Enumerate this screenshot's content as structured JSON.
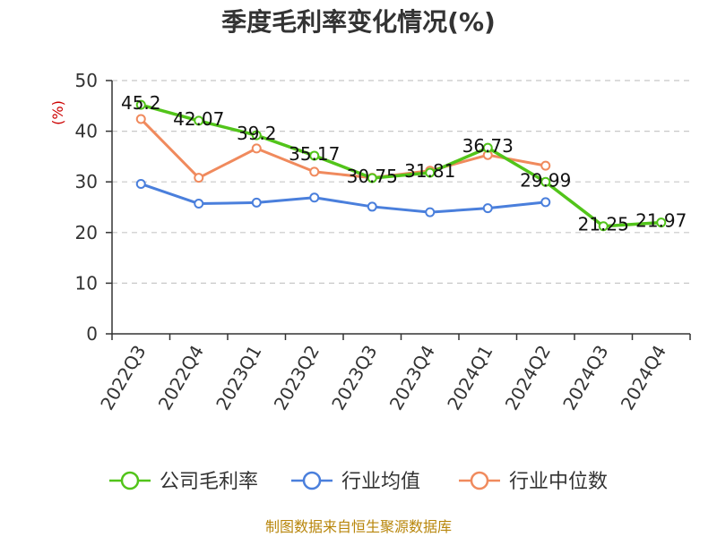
{
  "chart_data": {
    "type": "line",
    "title": "季度毛利率变化情况(%)",
    "ylabel": "(%)",
    "ylim": [
      0,
      50
    ],
    "yticks": [
      0,
      10,
      20,
      30,
      40,
      50
    ],
    "grid": true,
    "legend_position": "bottom",
    "categories": [
      "2022Q3",
      "2022Q4",
      "2023Q1",
      "2023Q2",
      "2023Q3",
      "2023Q4",
      "2024Q1",
      "2024Q2",
      "2024Q3",
      "2024Q4"
    ],
    "series": [
      {
        "name": "公司毛利率",
        "color": "#52c41a",
        "values": [
          45.2,
          42.07,
          39.2,
          35.17,
          30.75,
          31.81,
          36.73,
          29.99,
          21.25,
          21.97
        ],
        "labels": [
          "45.2",
          "42.07",
          "39.2",
          "35.17",
          "30.75",
          "31.81",
          "36.73",
          "29.99",
          "21.25",
          "21.97"
        ]
      },
      {
        "name": "行业均值",
        "color": "#4a7fdc",
        "values": [
          29.6,
          25.7,
          25.9,
          26.9,
          25.1,
          24.0,
          24.8,
          26.0,
          null,
          null
        ]
      },
      {
        "name": "行业中位数",
        "color": "#f08a5d",
        "values": [
          42.4,
          30.8,
          36.6,
          32.0,
          30.8,
          32.2,
          35.3,
          33.2,
          null,
          null
        ]
      }
    ]
  },
  "source": "制图数据来自恒生聚源数据库"
}
